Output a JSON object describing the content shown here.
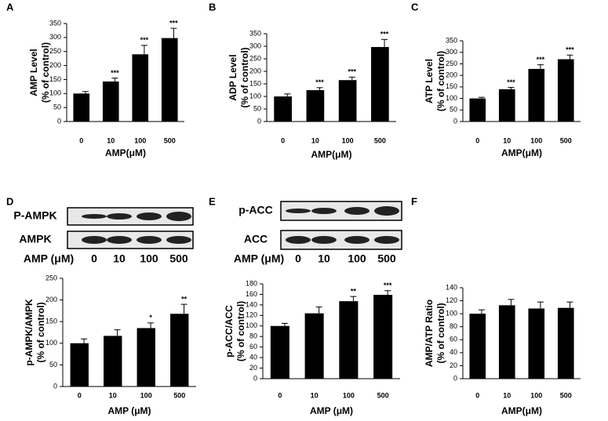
{
  "chart_data": [
    {
      "type": "bar",
      "panel": "A",
      "ylabel": [
        "AMP Level",
        "(% of control)"
      ],
      "xlabel": "AMP(μM)",
      "categories": [
        "0",
        "10",
        "100",
        "500"
      ],
      "values": [
        100,
        143,
        240,
        298
      ],
      "errors": [
        7,
        12,
        32,
        35
      ],
      "significance": [
        null,
        "***",
        "***",
        "***"
      ],
      "color": "#000000",
      "ylim": [
        0,
        350
      ],
      "yticks": [
        0,
        50,
        100,
        150,
        200,
        250,
        300,
        350
      ]
    },
    {
      "type": "bar",
      "panel": "B",
      "ylabel": [
        "ADP Level",
        "(% of control)"
      ],
      "xlabel": "AMP(μM)",
      "categories": [
        "0",
        "10",
        "100",
        "500"
      ],
      "values": [
        100,
        125,
        165,
        297
      ],
      "errors": [
        10,
        10,
        12,
        30
      ],
      "significance": [
        null,
        "***",
        "***",
        "***"
      ],
      "color": "#000000",
      "ylim": [
        0,
        350
      ],
      "yticks": [
        0,
        50,
        100,
        150,
        200,
        250,
        300,
        350
      ]
    },
    {
      "type": "bar",
      "panel": "C",
      "ylabel": [
        "ATP Level",
        "(% of control)"
      ],
      "xlabel": "AMP(μM)",
      "categories": [
        "0",
        "10",
        "100",
        "500"
      ],
      "values": [
        100,
        140,
        228,
        270
      ],
      "errors": [
        5,
        8,
        18,
        18
      ],
      "significance": [
        null,
        "***",
        "***",
        "***"
      ],
      "color": "#000000",
      "ylim": [
        0,
        350
      ],
      "yticks": [
        0,
        50,
        100,
        150,
        200,
        250,
        300,
        350
      ]
    },
    {
      "type": "bar",
      "panel": "D",
      "ylabel": [
        "p-AMPK/AMPK",
        "(% of control)"
      ],
      "xlabel": "AMP (μM)",
      "blot": {
        "rows": [
          "P-AMPK",
          "AMPK"
        ],
        "label": "AMP (μM)",
        "lanes": [
          "0",
          "10",
          "100",
          "500"
        ]
      },
      "categories": [
        "0",
        "10",
        "100",
        "500"
      ],
      "values": [
        100,
        117,
        135,
        168
      ],
      "errors": [
        10,
        14,
        12,
        22
      ],
      "significance": [
        null,
        null,
        "*",
        "**"
      ],
      "color": "#000000",
      "ylim": [
        0,
        250
      ],
      "yticks": [
        0,
        50,
        100,
        150,
        200,
        250
      ]
    },
    {
      "type": "bar",
      "panel": "E",
      "ylabel": [
        "p-ACC/ACC",
        "(% of control)"
      ],
      "xlabel": "AMP (μM)",
      "blot": {
        "rows": [
          "p-ACC",
          "ACC"
        ],
        "label": "AMP (μM)",
        "lanes": [
          "0",
          "10",
          "100",
          "500"
        ]
      },
      "categories": [
        "0",
        "10",
        "100",
        "500"
      ],
      "values": [
        100,
        124,
        147,
        159
      ],
      "errors": [
        5,
        12,
        9,
        8
      ],
      "significance": [
        null,
        null,
        "**",
        "***"
      ],
      "color": "#000000",
      "ylim": [
        0,
        180
      ],
      "yticks": [
        0,
        20,
        40,
        60,
        80,
        100,
        120,
        140,
        160,
        180
      ]
    },
    {
      "type": "bar",
      "panel": "F",
      "ylabel": [
        "AMP/ATP Ratio",
        "(% of control)"
      ],
      "xlabel": "AMP(μM)",
      "categories": [
        "0",
        "10",
        "100",
        "500"
      ],
      "values": [
        100,
        113,
        108,
        109
      ],
      "errors": [
        6,
        9,
        10,
        9
      ],
      "significance": [
        null,
        null,
        null,
        null
      ],
      "color": "#000000",
      "ylim": [
        0,
        140
      ],
      "yticks": [
        0,
        20,
        40,
        60,
        80,
        100,
        120,
        140
      ]
    }
  ]
}
